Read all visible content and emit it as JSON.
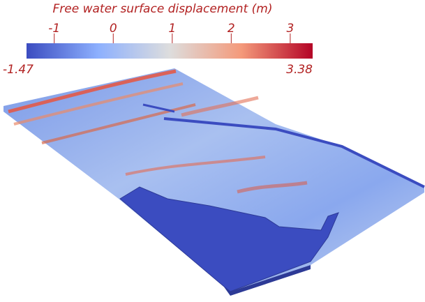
{
  "chart_data": {
    "type": "surface",
    "title": "Free water surface displacement (m)",
    "clim": [
      -1.47,
      3.38
    ],
    "ticks": [
      -1,
      0,
      1,
      2,
      3
    ],
    "colormap": [
      "#3b4cc0",
      "#8db0fe",
      "#dddddd",
      "#f49a7b",
      "#b40426"
    ],
    "text_color": "#b22222"
  }
}
